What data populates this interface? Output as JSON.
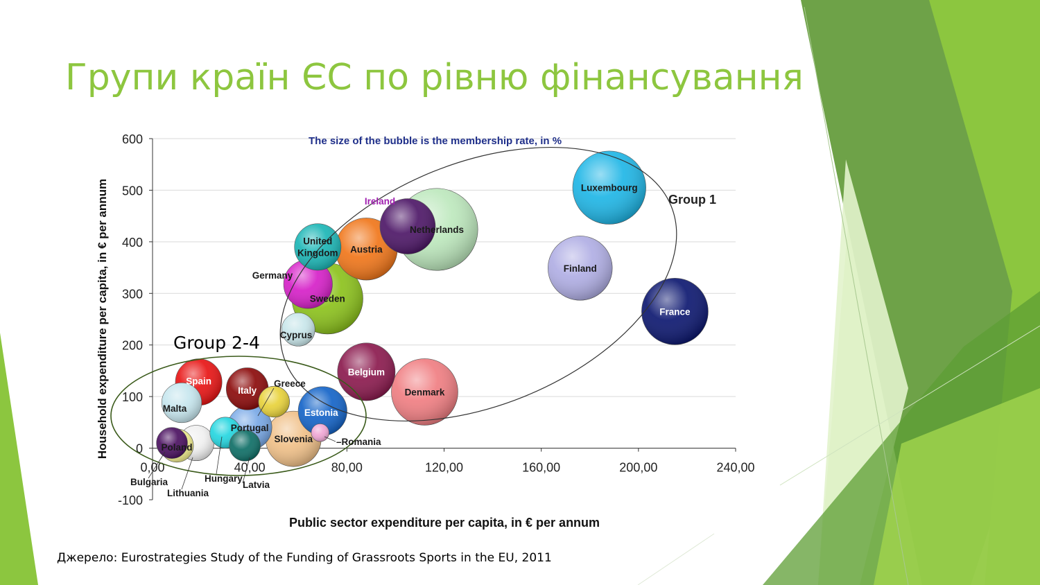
{
  "slide": {
    "title": "Групи країн ЄС по рівню фінансування",
    "source": "Джерело: Eurostrategies Study of the Funding of Grassroots Sports in the EU, 2011",
    "accent_color": "#8dc63f"
  },
  "chart_data": {
    "type": "bubble",
    "title": "The size of the bubble is the membership rate, in %",
    "xlabel": "Public sector expenditure per capita, in € per annum",
    "ylabel": "Household expenditure per capita, in € per annum",
    "xlim": [
      0,
      240
    ],
    "ylim": [
      -100,
      600
    ],
    "x_ticks": [
      "0,00",
      "40,00",
      "80,00",
      "120,00",
      "160,00",
      "200,00",
      "240,00"
    ],
    "y_ticks": [
      "-100",
      "0",
      "100",
      "200",
      "300",
      "400",
      "500",
      "600"
    ],
    "grid": "horizontal",
    "points": [
      {
        "name": "Luxembourg",
        "x": 188,
        "y": 505,
        "size": 33,
        "color": "#1fb6e6",
        "label": "Luxembourg"
      },
      {
        "name": "Netherlands",
        "x": 117,
        "y": 424,
        "size": 37,
        "color": "#bde8bd",
        "label": "Netherlands"
      },
      {
        "name": "Ireland",
        "x": 105,
        "y": 430,
        "size": 25,
        "color": "#4d1767",
        "label": "Ireland"
      },
      {
        "name": "Austria",
        "x": 88,
        "y": 386,
        "size": 28,
        "color": "#f0761a",
        "label": "Austria"
      },
      {
        "name": "United Kingdom",
        "x": 68,
        "y": 390,
        "size": 21,
        "color": "#1bb6b6",
        "label": "United Kingdom"
      },
      {
        "name": "Germany",
        "x": 64,
        "y": 318,
        "size": 22,
        "color": "#d620c8",
        "label": "Germany"
      },
      {
        "name": "Sweden",
        "x": 72,
        "y": 290,
        "size": 32,
        "color": "#8cc21c",
        "label": "Sweden"
      },
      {
        "name": "Finland",
        "x": 176,
        "y": 349,
        "size": 29,
        "color": "#b0aee4",
        "label": "Finland"
      },
      {
        "name": "France",
        "x": 215,
        "y": 265,
        "size": 30,
        "color": "#0d1870",
        "label": "France"
      },
      {
        "name": "Cyprus",
        "x": 60,
        "y": 230,
        "size": 15,
        "color": "#c8e6ea",
        "label": "Cyprus"
      },
      {
        "name": "Belgium",
        "x": 88,
        "y": 148,
        "size": 26,
        "color": "#8b1a4e",
        "label": "Belgium"
      },
      {
        "name": "Denmark",
        "x": 112,
        "y": 109,
        "size": 30,
        "color": "#f07e82",
        "label": "Denmark"
      },
      {
        "name": "Spain",
        "x": 19,
        "y": 128,
        "size": 21,
        "color": "#e81414",
        "label": "Spain"
      },
      {
        "name": "Italy",
        "x": 39,
        "y": 115,
        "size": 19,
        "color": "#8b0a0a",
        "label": "Italy"
      },
      {
        "name": "Malta",
        "x": 12,
        "y": 88,
        "size": 18,
        "color": "#c6e6ee",
        "label": "Malta"
      },
      {
        "name": "Greece",
        "x": 50,
        "y": 90,
        "size": 14,
        "color": "#e8d23a",
        "label": "Greece"
      },
      {
        "name": "Estonia",
        "x": 70,
        "y": 72,
        "size": 22,
        "color": "#1464c8",
        "label": "Estonia"
      },
      {
        "name": "Portugal",
        "x": 40,
        "y": 40,
        "size": 20,
        "color": "#78a8e6",
        "label": "Portugal"
      },
      {
        "name": "Slovenia",
        "x": 58,
        "y": 18,
        "size": 25,
        "color": "#f0c088",
        "label": "Slovenia"
      },
      {
        "name": "Romania",
        "x": 69,
        "y": 30,
        "size": 8,
        "color": "#f0a6d4",
        "label": "Romania"
      },
      {
        "name": "Hungary",
        "x": 30,
        "y": 30,
        "size": 14,
        "color": "#24d6e0",
        "label": "Hungary"
      },
      {
        "name": "Latvia",
        "x": 38,
        "y": 5,
        "size": 14,
        "color": "#0e6e66",
        "label": "Latvia"
      },
      {
        "name": "Lithuania",
        "x": 18,
        "y": 10,
        "size": 16,
        "color": "#f0f0f0",
        "label": "Lithuania"
      },
      {
        "name": "Poland",
        "x": 10,
        "y": 5,
        "size": 15,
        "color": "#f4f090",
        "label": "Poland"
      },
      {
        "name": "Bulgaria",
        "x": 8,
        "y": 10,
        "size": 14,
        "color": "#4a1060",
        "label": "Bulgaria"
      }
    ],
    "groups": [
      {
        "label": "Group 1",
        "members": [
          "Luxembourg",
          "Netherlands",
          "Ireland",
          "Austria",
          "United Kingdom",
          "Germany",
          "Sweden",
          "Finland",
          "France",
          "Cyprus",
          "Belgium",
          "Denmark"
        ]
      },
      {
        "label": "Group 2-4",
        "members": [
          "Spain",
          "Italy",
          "Malta",
          "Greece",
          "Estonia",
          "Portugal",
          "Slovenia",
          "Romania",
          "Hungary",
          "Latvia",
          "Lithuania",
          "Poland",
          "Bulgaria"
        ]
      }
    ]
  }
}
